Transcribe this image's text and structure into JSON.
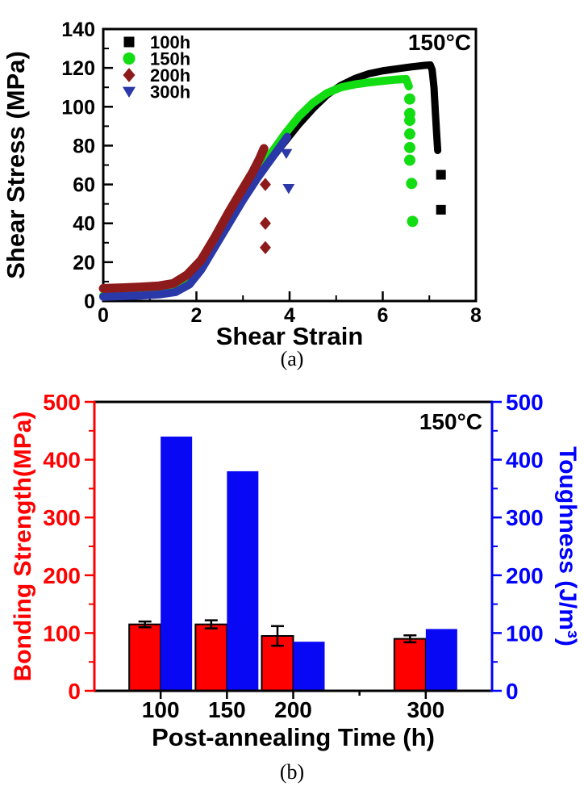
{
  "figure": {
    "panel_a_caption": "(a)",
    "panel_b_caption": "(b)"
  },
  "chart_data": [
    {
      "id": "a",
      "type": "scatter",
      "annotation": "150°C",
      "xlabel": "Shear Strain",
      "ylabel": "Shear Stress (MPa)",
      "xlim": [
        0,
        8
      ],
      "ylim": [
        0,
        140
      ],
      "xticks": [
        0,
        2,
        4,
        6,
        8
      ],
      "xticks_minor": [
        1,
        3,
        5,
        7
      ],
      "yticks": [
        0,
        20,
        40,
        60,
        80,
        100,
        120,
        140
      ],
      "yticks_minor": [
        10,
        30,
        50,
        70,
        90,
        110,
        130
      ],
      "grid": false,
      "legend_position": "top-left",
      "series": [
        {
          "name": "100h",
          "marker": "square",
          "color": "#000000",
          "curve": [
            [
              0,
              3
            ],
            [
              0.4,
              3.3
            ],
            [
              0.8,
              3.6
            ],
            [
              1.2,
              4.2
            ],
            [
              1.5,
              5.5
            ],
            [
              1.8,
              10
            ],
            [
              2.1,
              19
            ],
            [
              2.4,
              31
            ],
            [
              2.7,
              43
            ],
            [
              3.0,
              54
            ],
            [
              3.3,
              64
            ],
            [
              3.6,
              73
            ],
            [
              3.9,
              82
            ],
            [
              4.2,
              91
            ],
            [
              4.5,
              99
            ],
            [
              4.8,
              106
            ],
            [
              5.1,
              111
            ],
            [
              5.4,
              114.5
            ],
            [
              5.7,
              117
            ],
            [
              6.0,
              118.5
            ],
            [
              6.3,
              119.5
            ],
            [
              6.6,
              120.5
            ],
            [
              6.9,
              121.3
            ],
            [
              7.02,
              121.5
            ],
            [
              7.06,
              119
            ],
            [
              7.1,
              110
            ],
            [
              7.13,
              97
            ],
            [
              7.16,
              85
            ],
            [
              7.18,
              77.5
            ]
          ],
          "drop_points": [
            [
              7.25,
              65
            ],
            [
              7.25,
              47
            ]
          ]
        },
        {
          "name": "150h",
          "marker": "circle",
          "color": "#12DC12",
          "curve": [
            [
              0,
              2.8
            ],
            [
              0.4,
              3.1
            ],
            [
              0.8,
              3.4
            ],
            [
              1.2,
              4.0
            ],
            [
              1.5,
              5.2
            ],
            [
              1.8,
              9.5
            ],
            [
              2.1,
              18
            ],
            [
              2.4,
              30
            ],
            [
              2.7,
              43
            ],
            [
              3.0,
              55
            ],
            [
              3.3,
              66
            ],
            [
              3.6,
              76
            ],
            [
              3.9,
              86
            ],
            [
              4.2,
              95
            ],
            [
              4.5,
              102
            ],
            [
              4.8,
              107
            ],
            [
              5.1,
              110
            ],
            [
              5.4,
              111.5
            ],
            [
              5.7,
              112.5
            ],
            [
              6.0,
              113.3
            ],
            [
              6.3,
              114
            ],
            [
              6.5,
              114.3
            ],
            [
              6.56,
              110.5
            ]
          ],
          "drop_points": [
            [
              6.58,
              104
            ],
            [
              6.58,
              96.5
            ],
            [
              6.58,
              93
            ],
            [
              6.58,
              86
            ],
            [
              6.58,
              79
            ],
            [
              6.58,
              72.5
            ],
            [
              6.62,
              60.5
            ],
            [
              6.64,
              41
            ]
          ]
        },
        {
          "name": "200h",
          "marker": "diamond",
          "color": "#8E1B1B",
          "curve": [
            [
              0,
              6.5
            ],
            [
              0.4,
              6.8
            ],
            [
              0.8,
              7.2
            ],
            [
              1.2,
              7.8
            ],
            [
              1.5,
              9
            ],
            [
              1.8,
              13.5
            ],
            [
              2.1,
              21
            ],
            [
              2.4,
              33
            ],
            [
              2.7,
              46
            ],
            [
              3.0,
              58
            ],
            [
              3.2,
              66
            ],
            [
              3.35,
              73
            ],
            [
              3.45,
              78.5
            ]
          ],
          "drop_points": [
            [
              3.48,
              60
            ],
            [
              3.48,
              40
            ],
            [
              3.48,
              27.5
            ]
          ]
        },
        {
          "name": "300h",
          "marker": "triangle-down",
          "color": "#2B38A8",
          "curve": [
            [
              0,
              2.2
            ],
            [
              0.4,
              2.5
            ],
            [
              0.8,
              2.8
            ],
            [
              1.2,
              3.4
            ],
            [
              1.55,
              4.6
            ],
            [
              1.85,
              8.5
            ],
            [
              2.1,
              16
            ],
            [
              2.4,
              28
            ],
            [
              2.7,
              40
            ],
            [
              3.0,
              52
            ],
            [
              3.3,
              63
            ],
            [
              3.6,
              73
            ],
            [
              3.8,
              79.5
            ],
            [
              3.95,
              84.5
            ]
          ],
          "drop_points": [
            [
              3.93,
              76
            ],
            [
              3.98,
              58
            ]
          ]
        }
      ],
      "draw_order": [
        0,
        1,
        3,
        2
      ]
    },
    {
      "id": "b",
      "type": "bar",
      "annotation": "150°C",
      "xlabel": "Post-annealing Time (h)",
      "ylabel_left": "Bonding Strength(MPa)",
      "ylabel_right": "Toughness (J/m³)",
      "axis_left_color": "#FF0000",
      "axis_right_color": "#0000FF",
      "categories": [
        100,
        150,
        200,
        300
      ],
      "xlim": [
        50,
        350
      ],
      "ylim_left": [
        0,
        500
      ],
      "ylim_right": [
        0,
        500
      ],
      "yticks": [
        0,
        100,
        200,
        300,
        400,
        500
      ],
      "yticks_minor": [
        50,
        150,
        250,
        350,
        450
      ],
      "xticks": [
        {
          "v": 100,
          "label": "100",
          "major": true
        },
        {
          "v": 150,
          "label": "150",
          "major": true
        },
        {
          "v": 200,
          "label": "200",
          "major": true
        },
        {
          "v": 250,
          "label": "",
          "major": false
        },
        {
          "v": 300,
          "label": "300",
          "major": true
        }
      ],
      "series": [
        {
          "name": "Bonding Strength",
          "axis": "left",
          "color": "#FF0000",
          "outline": "#000000",
          "values": [
            115,
            115,
            95,
            90
          ],
          "errors": [
            5,
            7,
            17,
            6
          ]
        },
        {
          "name": "Toughness",
          "axis": "right",
          "color": "#0808F5",
          "outline": "none",
          "values": [
            440,
            380,
            85,
            107
          ],
          "errors": null
        }
      ]
    }
  ]
}
